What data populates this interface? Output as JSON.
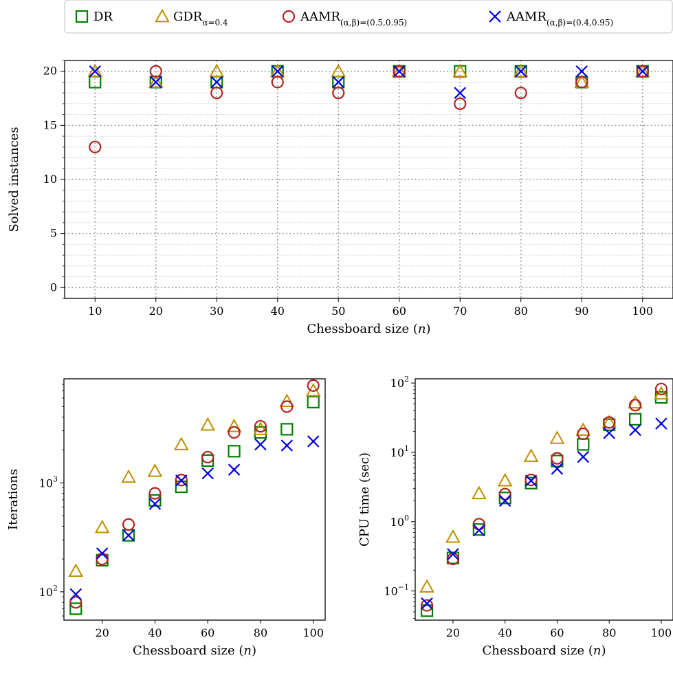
{
  "legend": {
    "entries": [
      {
        "series": "DR",
        "label": "DR",
        "sub": "",
        "marker": "square",
        "color": "#008000"
      },
      {
        "series": "GDR",
        "label": "GDR",
        "sub": "α=0.4",
        "marker": "triangle",
        "color": "#bf8f00"
      },
      {
        "series": "AAMR1",
        "label": "AAMR",
        "sub": "(α,β)=(0.5,0.95)",
        "marker": "circle",
        "color": "#b22222"
      },
      {
        "series": "AAMR2",
        "label": "AAMR",
        "sub": "(α,β)=(0.4,0.95)",
        "marker": "x",
        "color": "#0000e6"
      }
    ]
  },
  "chart_data": [
    {
      "type": "scatter",
      "id": "solved",
      "xlabel": "Chessboard size (n)",
      "ylabel": "Solved instances",
      "xlim": [
        5,
        105
      ],
      "ylim": [
        -1,
        21
      ],
      "xticks": [
        10,
        20,
        30,
        40,
        50,
        60,
        70,
        80,
        90,
        100
      ],
      "yticks": [
        0,
        5,
        10,
        15,
        20
      ],
      "grid": true,
      "x": [
        10,
        20,
        30,
        40,
        50,
        60,
        70,
        80,
        90,
        100
      ],
      "series": [
        {
          "name": "DR",
          "values": [
            19,
            19,
            19,
            20,
            19,
            20,
            20,
            20,
            19,
            20
          ]
        },
        {
          "name": "GDR",
          "values": [
            20,
            19,
            20,
            20,
            20,
            20,
            20,
            20,
            19,
            20
          ]
        },
        {
          "name": "AAMR1",
          "values": [
            13,
            20,
            18,
            19,
            18,
            20,
            17,
            18,
            19,
            20
          ]
        },
        {
          "name": "AAMR2",
          "values": [
            20,
            19,
            19,
            20,
            19,
            20,
            18,
            20,
            20,
            20
          ]
        }
      ]
    },
    {
      "type": "scatter",
      "id": "iterations",
      "xlabel": "Chessboard size (n)",
      "ylabel": "Iterations",
      "yscale": "log",
      "xlim": [
        5.5,
        104.5
      ],
      "ylim": [
        55,
        9000
      ],
      "xticks": [
        20,
        40,
        60,
        80,
        100
      ],
      "yticks": [
        100,
        1000
      ],
      "ytick_labels": [
        {
          "base": "10",
          "exp": "2"
        },
        {
          "base": "10",
          "exp": "3"
        }
      ],
      "grid": false,
      "x": [
        10,
        20,
        30,
        40,
        50,
        60,
        70,
        80,
        90,
        100
      ],
      "series": [
        {
          "name": "DR",
          "values": [
            70,
            195,
            330,
            690,
            920,
            1600,
            1950,
            2900,
            3100,
            5500
          ]
        },
        {
          "name": "GDR",
          "values": [
            155,
            390,
            1130,
            1280,
            2250,
            3400,
            3300,
            3100,
            5600,
            7000
          ]
        },
        {
          "name": "AAMR1",
          "values": [
            80,
            200,
            415,
            800,
            1060,
            1720,
            2900,
            3300,
            5000,
            7800
          ]
        },
        {
          "name": "AAMR2",
          "values": [
            95,
            225,
            330,
            640,
            1050,
            1220,
            1320,
            2250,
            2200,
            2400
          ]
        }
      ]
    },
    {
      "type": "scatter",
      "id": "cputime",
      "xlabel": "Chessboard size (n)",
      "ylabel": "CPU time (sec)",
      "yscale": "log",
      "xlim": [
        5.5,
        104.5
      ],
      "ylim": [
        0.038,
        115
      ],
      "xticks": [
        20,
        40,
        60,
        80,
        100
      ],
      "yticks": [
        0.1,
        1,
        10,
        100
      ],
      "ytick_labels": [
        {
          "base": "10",
          "exp": "−1"
        },
        {
          "base": "10",
          "exp": "0"
        },
        {
          "base": "10",
          "exp": "1"
        },
        {
          "base": "10",
          "exp": "2"
        }
      ],
      "grid": false,
      "x": [
        10,
        20,
        30,
        40,
        50,
        60,
        70,
        80,
        90,
        100
      ],
      "series": [
        {
          "name": "DR",
          "values": [
            0.052,
            0.3,
            0.77,
            2.2,
            3.6,
            7.5,
            13,
            25,
            30,
            62
          ]
        },
        {
          "name": "GDR",
          "values": [
            0.115,
            0.6,
            2.55,
            3.9,
            8.8,
            16,
            21,
            27,
            52,
            70
          ]
        },
        {
          "name": "AAMR1",
          "values": [
            0.062,
            0.29,
            0.92,
            2.5,
            4.0,
            8.2,
            18.5,
            27,
            48,
            82
          ]
        },
        {
          "name": "AAMR2",
          "values": [
            0.066,
            0.34,
            0.75,
            2.0,
            3.9,
            5.8,
            8.6,
            19,
            21,
            26
          ]
        }
      ]
    }
  ]
}
